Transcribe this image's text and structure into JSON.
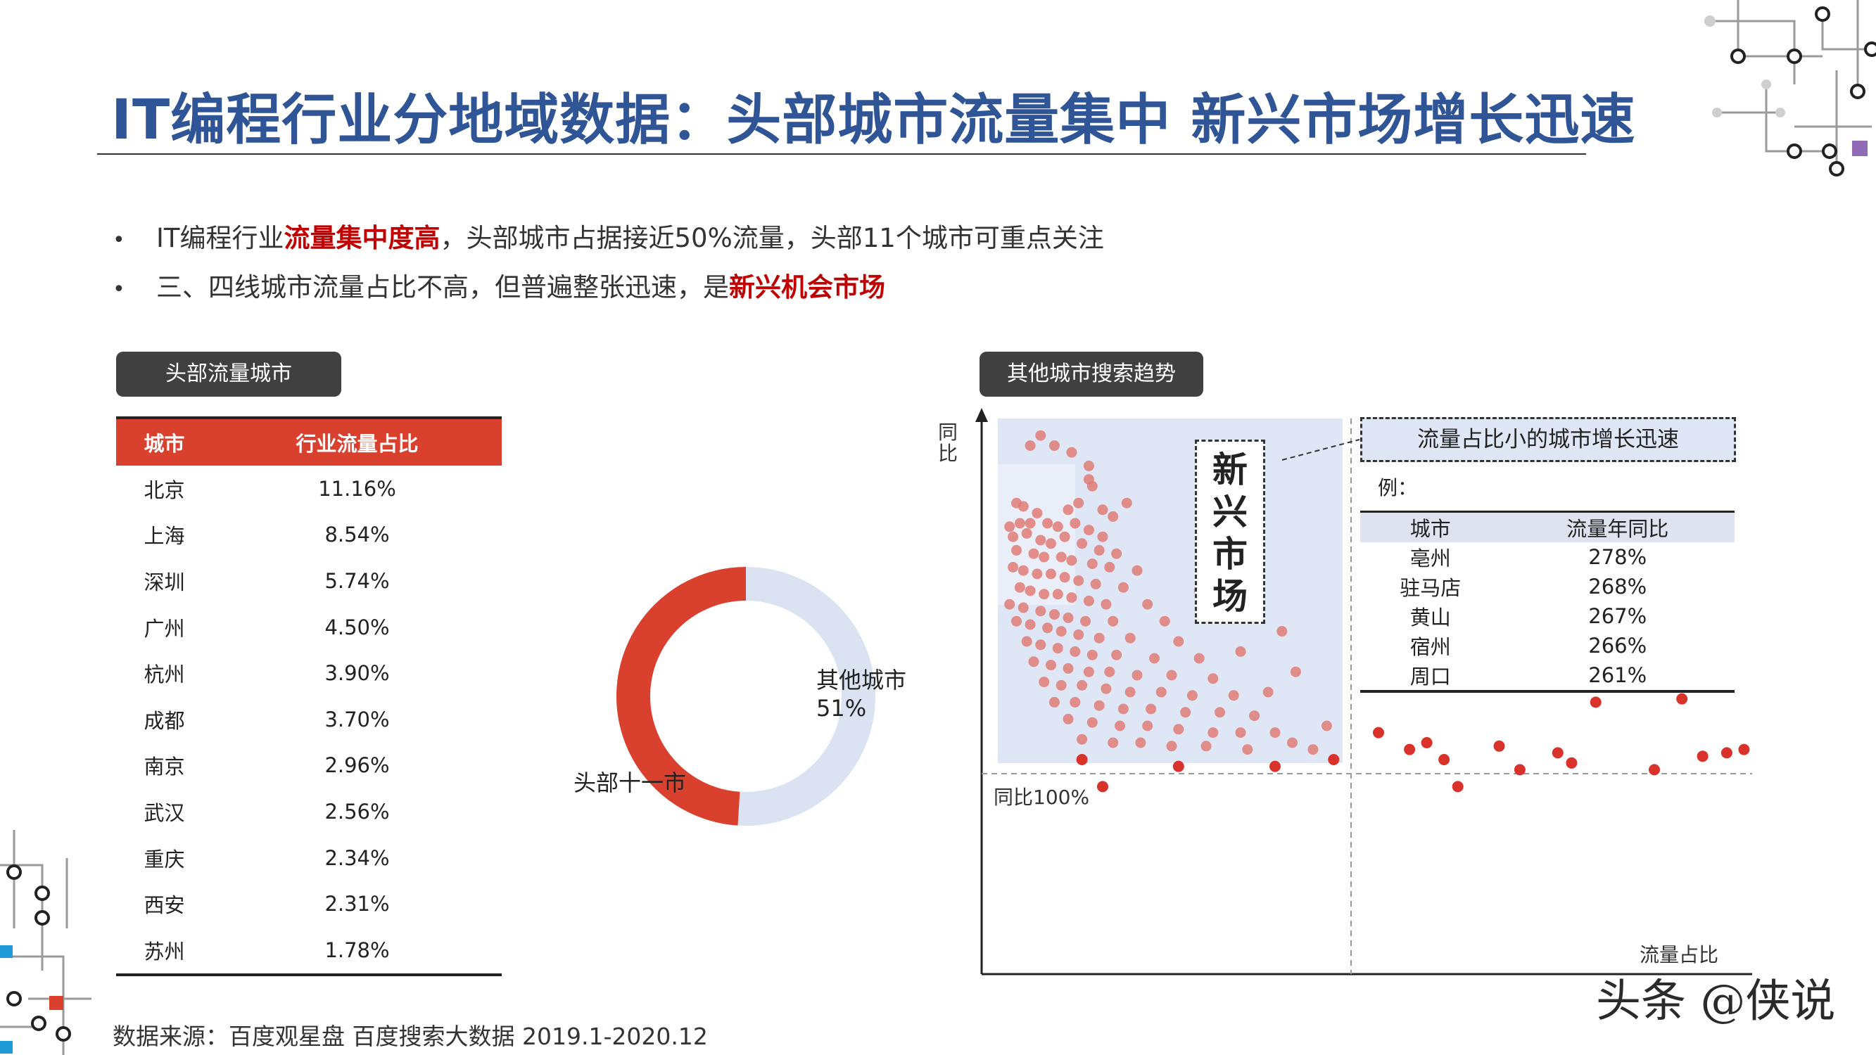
{
  "title": "IT编程行业分地域数据：头部城市流量集中 新兴市场增长迅速",
  "bullets": [
    {
      "dot": "•",
      "pre": "IT编程行业",
      "hl": "流量集中度高",
      "post": "，头部城市占据接近50%流量，头部11个城市可重点关注"
    },
    {
      "dot": "•",
      "pre": "三、四线城市流量占比不高，但普遍整张迅速，是",
      "hl": "新兴机会市场",
      "post": ""
    }
  ],
  "left_panel": {
    "pill": "头部流量城市",
    "table": {
      "headers": [
        "城市",
        "行业流量占比"
      ],
      "rows": [
        [
          "北京",
          "11.16%"
        ],
        [
          "上海",
          "8.54%"
        ],
        [
          "深圳",
          "5.74%"
        ],
        [
          "广州",
          "4.50%"
        ],
        [
          "杭州",
          "3.90%"
        ],
        [
          "成都",
          "3.70%"
        ],
        [
          "南京",
          "2.96%"
        ],
        [
          "武汉",
          "2.56%"
        ],
        [
          "重庆",
          "2.34%"
        ],
        [
          "西安",
          "2.31%"
        ],
        [
          "苏州",
          "1.78%"
        ]
      ]
    }
  },
  "right_panel": {
    "pill": "其他城市搜索趋势",
    "callout": "流量占比小的城市增长迅速",
    "eg_label": "例：",
    "new_market_chars": [
      "新",
      "兴",
      "市",
      "场"
    ],
    "example_table": {
      "headers": [
        "城市",
        "流量年同比"
      ],
      "rows": [
        [
          "亳州",
          "278%"
        ],
        [
          "驻马店",
          "268%"
        ],
        [
          "黄山",
          "267%"
        ],
        [
          "宿州",
          "266%"
        ],
        [
          "周口",
          "261%"
        ]
      ]
    }
  },
  "chart_data": [
    {
      "type": "pie",
      "donut": true,
      "slices": [
        {
          "label": "头部十一市",
          "value": 49,
          "color": "#d9402e"
        },
        {
          "label": "其他城市",
          "value": 51,
          "value_label": "51%",
          "color": "#dbe3f3"
        }
      ]
    },
    {
      "type": "scatter",
      "xlabel": "流量占比",
      "ylabel": "同比",
      "grid": false,
      "reference_line": {
        "axis": "y",
        "label": "同比100%"
      },
      "highlight_region": {
        "label": "新兴市场",
        "color": "#dfe6f5"
      },
      "note": "values are relative (no tick labels on axes)",
      "clustered_points": [
        [
          0.12,
          0.96
        ],
        [
          0.09,
          0.93
        ],
        [
          0.16,
          0.93
        ],
        [
          0.21,
          0.91
        ],
        [
          0.26,
          0.87
        ],
        [
          0.26,
          0.83
        ],
        [
          0.27,
          0.81
        ],
        [
          0.37,
          0.76
        ],
        [
          0.05,
          0.76
        ],
        [
          0.07,
          0.75
        ],
        [
          0.11,
          0.73
        ],
        [
          0.2,
          0.74
        ],
        [
          0.23,
          0.76
        ],
        [
          0.3,
          0.74
        ],
        [
          0.33,
          0.72
        ],
        [
          0.03,
          0.69
        ],
        [
          0.06,
          0.7
        ],
        [
          0.09,
          0.7
        ],
        [
          0.14,
          0.7
        ],
        [
          0.17,
          0.69
        ],
        [
          0.22,
          0.7
        ],
        [
          0.26,
          0.68
        ],
        [
          0.3,
          0.66
        ],
        [
          0.04,
          0.66
        ],
        [
          0.08,
          0.67
        ],
        [
          0.12,
          0.65
        ],
        [
          0.15,
          0.64
        ],
        [
          0.19,
          0.66
        ],
        [
          0.24,
          0.64
        ],
        [
          0.29,
          0.62
        ],
        [
          0.34,
          0.61
        ],
        [
          0.05,
          0.62
        ],
        [
          0.1,
          0.61
        ],
        [
          0.13,
          0.6
        ],
        [
          0.18,
          0.6
        ],
        [
          0.21,
          0.59
        ],
        [
          0.27,
          0.58
        ],
        [
          0.32,
          0.57
        ],
        [
          0.4,
          0.56
        ],
        [
          0.04,
          0.57
        ],
        [
          0.07,
          0.56
        ],
        [
          0.11,
          0.55
        ],
        [
          0.15,
          0.55
        ],
        [
          0.19,
          0.54
        ],
        [
          0.23,
          0.53
        ],
        [
          0.28,
          0.52
        ],
        [
          0.36,
          0.51
        ],
        [
          0.06,
          0.51
        ],
        [
          0.09,
          0.5
        ],
        [
          0.13,
          0.49
        ],
        [
          0.17,
          0.49
        ],
        [
          0.21,
          0.48
        ],
        [
          0.26,
          0.47
        ],
        [
          0.31,
          0.46
        ],
        [
          0.43,
          0.46
        ],
        [
          0.03,
          0.46
        ],
        [
          0.07,
          0.45
        ],
        [
          0.12,
          0.44
        ],
        [
          0.16,
          0.43
        ],
        [
          0.2,
          0.42
        ],
        [
          0.25,
          0.41
        ],
        [
          0.33,
          0.41
        ],
        [
          0.48,
          0.41
        ],
        [
          0.05,
          0.41
        ],
        [
          0.09,
          0.4
        ],
        [
          0.14,
          0.39
        ],
        [
          0.18,
          0.38
        ],
        [
          0.23,
          0.37
        ],
        [
          0.29,
          0.36
        ],
        [
          0.38,
          0.36
        ],
        [
          0.52,
          0.35
        ],
        [
          0.08,
          0.35
        ],
        [
          0.12,
          0.34
        ],
        [
          0.17,
          0.33
        ],
        [
          0.22,
          0.32
        ],
        [
          0.27,
          0.31
        ],
        [
          0.34,
          0.31
        ],
        [
          0.45,
          0.3
        ],
        [
          0.58,
          0.3
        ],
        [
          0.1,
          0.29
        ],
        [
          0.15,
          0.28
        ],
        [
          0.2,
          0.27
        ],
        [
          0.26,
          0.26
        ],
        [
          0.32,
          0.26
        ],
        [
          0.4,
          0.25
        ],
        [
          0.5,
          0.25
        ],
        [
          0.62,
          0.24
        ],
        [
          0.13,
          0.23
        ],
        [
          0.18,
          0.22
        ],
        [
          0.24,
          0.22
        ],
        [
          0.31,
          0.21
        ],
        [
          0.38,
          0.2
        ],
        [
          0.47,
          0.2
        ],
        [
          0.56,
          0.19
        ],
        [
          0.68,
          0.19
        ],
        [
          0.16,
          0.17
        ],
        [
          0.22,
          0.17
        ],
        [
          0.29,
          0.16
        ],
        [
          0.36,
          0.15
        ],
        [
          0.44,
          0.15
        ],
        [
          0.54,
          0.14
        ],
        [
          0.64,
          0.14
        ],
        [
          0.74,
          0.13
        ],
        [
          0.2,
          0.12
        ],
        [
          0.27,
          0.11
        ],
        [
          0.35,
          0.1
        ],
        [
          0.43,
          0.1
        ],
        [
          0.52,
          0.09
        ],
        [
          0.62,
          0.08
        ],
        [
          0.7,
          0.08
        ],
        [
          0.8,
          0.08
        ],
        [
          0.24,
          0.06
        ],
        [
          0.33,
          0.05
        ],
        [
          0.41,
          0.05
        ],
        [
          0.5,
          0.04
        ],
        [
          0.6,
          0.04
        ],
        [
          0.72,
          0.03
        ],
        [
          0.85,
          0.05
        ],
        [
          0.91,
          0.03
        ],
        [
          0.58,
          0.5
        ],
        [
          0.66,
          0.45
        ],
        [
          0.75,
          0.42
        ],
        [
          0.82,
          0.38
        ],
        [
          0.7,
          0.32
        ],
        [
          0.86,
          0.26
        ],
        [
          0.78,
          0.2
        ],
        [
          0.95,
          0.1
        ]
      ],
      "outlier_points": [
        [
          0.24,
          0.0
        ],
        [
          0.52,
          -0.02
        ],
        [
          0.8,
          -0.02
        ],
        [
          0.97,
          0.0
        ],
        [
          0.3,
          -0.08
        ],
        [
          1.1,
          0.08
        ],
        [
          1.19,
          0.03
        ],
        [
          1.24,
          0.05
        ],
        [
          1.29,
          0.0
        ],
        [
          1.33,
          -0.08
        ],
        [
          1.45,
          0.04
        ],
        [
          1.51,
          -0.03
        ],
        [
          1.62,
          0.02
        ],
        [
          1.66,
          -0.01
        ],
        [
          1.73,
          0.17
        ],
        [
          1.9,
          -0.03
        ],
        [
          1.98,
          0.18
        ],
        [
          2.04,
          0.01
        ],
        [
          2.11,
          0.02
        ],
        [
          2.16,
          0.03
        ]
      ]
    }
  ],
  "source": "数据来源：百度观星盘 百度搜索大数据 2019.1-2020.12",
  "watermark": "头条 @侠说"
}
